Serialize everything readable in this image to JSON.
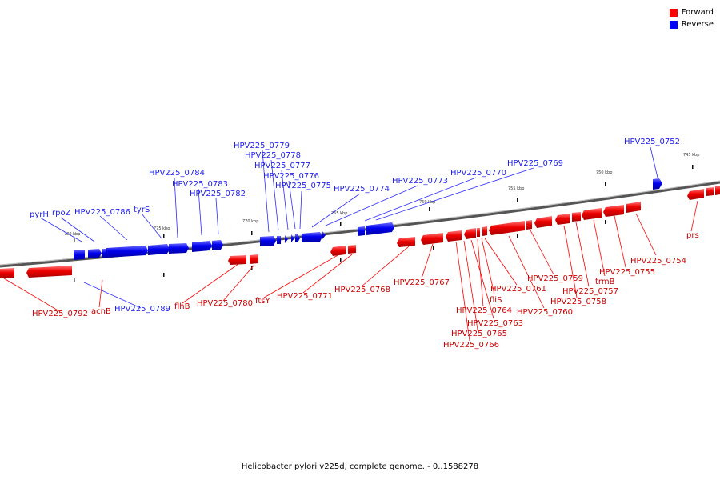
{
  "legend": {
    "forward": {
      "label": "Forward",
      "color": "#ff0000"
    },
    "reverse": {
      "label": "Reverse",
      "color": "#0000ff"
    }
  },
  "caption": "Helicobacter pylori v225d, complete genome. - 0..1588278",
  "scale_labels": [
    "780 kbp",
    "775 kbp",
    "770 kbp",
    "765 kbp",
    "760 kbp",
    "755 kbp",
    "750 kbp",
    "745 kbp"
  ],
  "labels": {
    "reverse": [
      "pyrH",
      "rpoZ",
      "HPV225_0786",
      "tyrS",
      "HPV225_0784",
      "HPV225_0783",
      "HPV225_0782",
      "HPV225_0779",
      "HPV225_0778",
      "HPV225_0777",
      "HPV225_0776",
      "HPV225_0775",
      "HPV225_0774",
      "HPV225_0773",
      "HPV225_0770",
      "HPV225_0769",
      "HPV225_0752",
      "HPV225_0789"
    ],
    "forward": [
      "HPV225_0792",
      "acnB",
      "flhB",
      "HPV225_0780",
      "ftsY",
      "HPV225_0771",
      "HPV225_0768",
      "HPV225_0767",
      "HPV225_0761",
      "fliS",
      "HPV225_0764",
      "HPV225_0763",
      "HPV225_0765",
      "HPV225_0766",
      "HPV225_0760",
      "HPV225_0759",
      "HPV225_0758",
      "HPV225_0757",
      "trmB",
      "HPV225_0755",
      "HPV225_0754",
      "prs"
    ]
  }
}
